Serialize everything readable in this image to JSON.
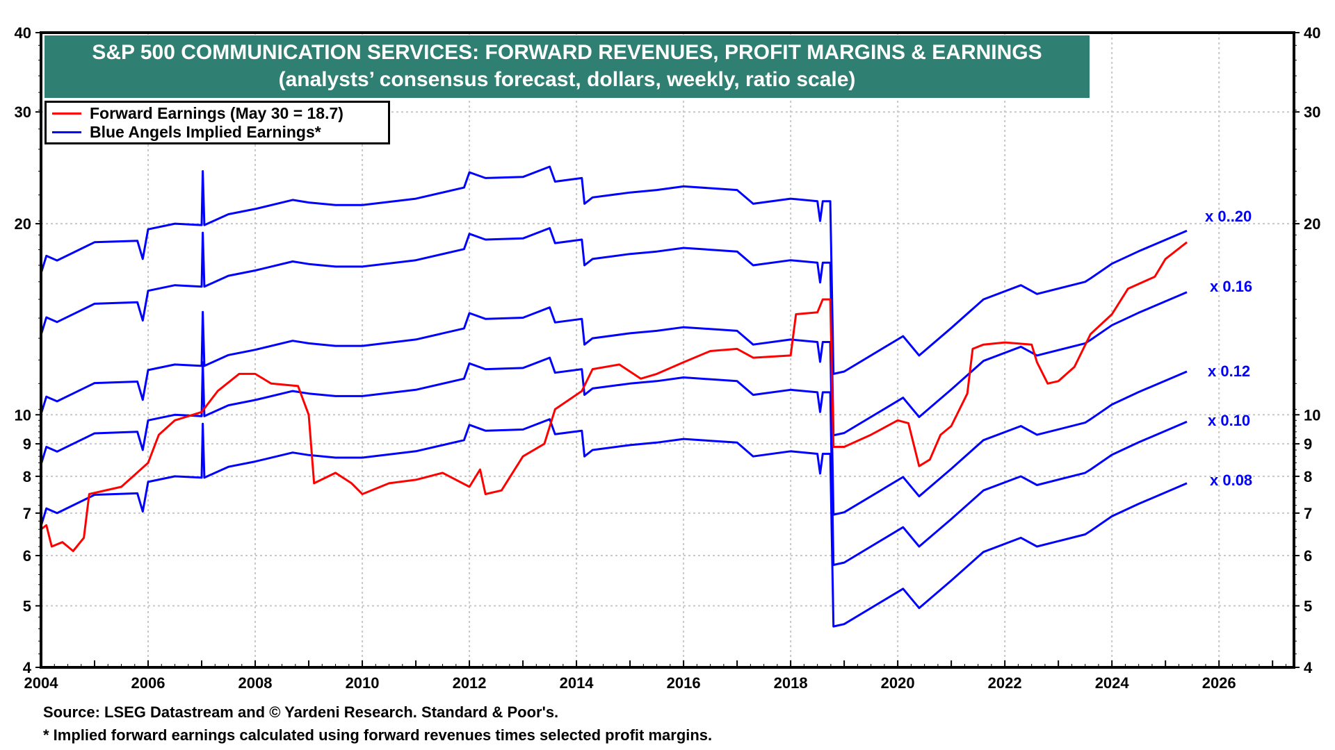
{
  "chart_data": {
    "type": "line",
    "title": "S&P 500 COMMUNICATION SERVICES: FORWARD REVENUES, PROFIT MARGINS & EARNINGS",
    "subtitle": "(analysts’ consensus forecast, dollars, weekly, ratio scale)",
    "y_scale": "log",
    "ylim": [
      4,
      40
    ],
    "xlim": [
      2004,
      2027.4
    ],
    "y_ticks": [
      4,
      5,
      6,
      7,
      8,
      9,
      10,
      20,
      30,
      40
    ],
    "x_ticks": [
      2004,
      2006,
      2008,
      2010,
      2012,
      2014,
      2016,
      2018,
      2020,
      2022,
      2024,
      2026
    ],
    "grid": true,
    "legend_placement": "top-left",
    "legend": [
      "Forward Earnings (May 30 = 18.7)",
      "Blue Angels Implied Earnings*"
    ],
    "colors": {
      "forward_earnings": "#ff0000",
      "implied_earnings": "#0000ff",
      "title_bg": "#2f7f72"
    },
    "forward_earnings": {
      "x": [
        2004.0,
        2004.1,
        2004.2,
        2004.4,
        2004.6,
        2004.8,
        2004.9,
        2005.5,
        2006.0,
        2006.2,
        2006.5,
        2007.0,
        2007.3,
        2007.7,
        2008.0,
        2008.3,
        2008.8,
        2009.0,
        2009.1,
        2009.5,
        2009.8,
        2010.0,
        2010.5,
        2011.0,
        2011.5,
        2012.0,
        2012.2,
        2012.3,
        2012.6,
        2013.0,
        2013.4,
        2013.6,
        2014.1,
        2014.3,
        2014.8,
        2015.2,
        2015.5,
        2016.0,
        2016.5,
        2017.0,
        2017.3,
        2018.0,
        2018.1,
        2018.5,
        2018.6,
        2018.74,
        2018.8,
        2019.0,
        2019.5,
        2020.0,
        2020.2,
        2020.4,
        2020.6,
        2020.8,
        2021.0,
        2021.3,
        2021.4,
        2021.6,
        2022.0,
        2022.5,
        2022.6,
        2022.8,
        2023.0,
        2023.3,
        2023.6,
        2024.0,
        2024.3,
        2024.8,
        2025.0,
        2025.4
      ],
      "y": [
        6.6,
        6.7,
        6.2,
        6.3,
        6.1,
        6.4,
        7.5,
        7.7,
        8.4,
        9.3,
        9.8,
        10.1,
        10.9,
        11.6,
        11.6,
        11.2,
        11.1,
        10.0,
        7.8,
        8.1,
        7.8,
        7.5,
        7.8,
        7.9,
        8.1,
        7.7,
        8.2,
        7.5,
        7.6,
        8.6,
        9.0,
        10.2,
        10.9,
        11.8,
        12.0,
        11.4,
        11.6,
        12.1,
        12.6,
        12.7,
        12.3,
        12.4,
        14.4,
        14.5,
        15.2,
        15.2,
        8.9,
        8.9,
        9.3,
        9.8,
        9.7,
        8.3,
        8.5,
        9.3,
        9.6,
        10.8,
        12.7,
        12.9,
        13.0,
        12.9,
        12.1,
        11.2,
        11.3,
        11.9,
        13.4,
        14.4,
        15.8,
        16.5,
        17.6,
        18.7
      ]
    },
    "implied_earnings": {
      "margins": [
        0.2,
        0.16,
        0.12,
        0.1,
        0.08
      ],
      "margin_labels": [
        "x 0..20",
        "x 0.16",
        "x 0.12",
        "x 0.10",
        "x 0.08"
      ],
      "x_0_20_series": {
        "x": [
          2004.0,
          2004.1,
          2004.3,
          2005.0,
          2005.8,
          2005.9,
          2006.0,
          2006.5,
          2007.0,
          2007.02,
          2007.05,
          2007.5,
          2008.0,
          2008.7,
          2009.0,
          2009.5,
          2010.0,
          2011.0,
          2011.9,
          2012.0,
          2012.3,
          2013.0,
          2013.5,
          2013.6,
          2014.1,
          2014.15,
          2014.3,
          2015.0,
          2015.5,
          2016.0,
          2017.0,
          2017.3,
          2018.0,
          2018.5,
          2018.55,
          2018.6,
          2018.74,
          2018.8,
          2019.0,
          2020.1,
          2020.4,
          2021.0,
          2021.6,
          2022.3,
          2022.6,
          2023.5,
          2023.6,
          2024.0,
          2024.5,
          2025.4
        ],
        "y": [
          16.7,
          17.8,
          17.5,
          18.7,
          18.8,
          17.6,
          19.6,
          20.0,
          19.9,
          24.2,
          19.9,
          20.7,
          21.1,
          21.8,
          21.6,
          21.4,
          21.4,
          21.9,
          22.8,
          24.1,
          23.6,
          23.7,
          24.6,
          23.3,
          23.6,
          21.5,
          22.0,
          22.4,
          22.6,
          22.9,
          22.6,
          21.5,
          21.9,
          21.7,
          20.2,
          21.7,
          21.7,
          11.6,
          11.7,
          13.3,
          12.4,
          13.7,
          15.2,
          16.0,
          15.5,
          16.2,
          16.4,
          17.3,
          18.1,
          19.5
        ]
      }
    },
    "footnotes": {
      "source": "Source: LSEG Datastream and © Yardeni Research. Standard & Poor's.",
      "note": "* Implied forward earnings calculated using forward revenues times selected profit margins."
    }
  }
}
